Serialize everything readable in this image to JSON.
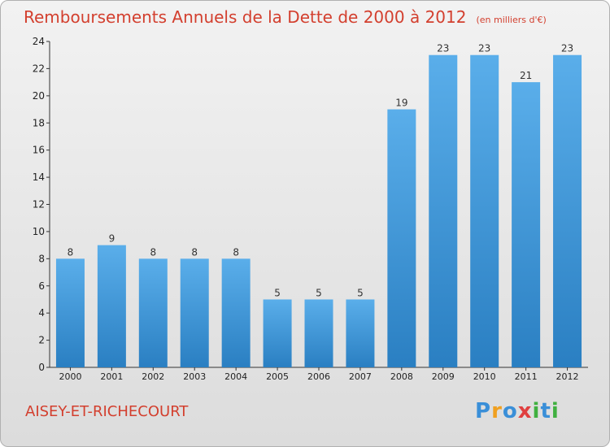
{
  "header": {
    "title": "Remboursements Annuels de la Dette de 2000 à 2012",
    "unit": "(en milliers d'€)"
  },
  "footer": {
    "place": "AISEY-ET-RICHECOURT",
    "logo": [
      "P",
      "r",
      "o",
      "x",
      "i",
      "t",
      "i"
    ]
  },
  "colors": {
    "title": "#d33f2e",
    "bar_top": "#5aaeea",
    "bar_bottom": "#2a7fc2",
    "logo": [
      "#3a8fd8",
      "#f0a020",
      "#3a8fd8",
      "#e04040",
      "#40b040",
      "#3a8fd8",
      "#40b040"
    ]
  },
  "chart_data": {
    "type": "bar",
    "categories": [
      "2000",
      "2001",
      "2002",
      "2003",
      "2004",
      "2005",
      "2006",
      "2007",
      "2008",
      "2009",
      "2010",
      "2011",
      "2012"
    ],
    "values": [
      8,
      9,
      8,
      8,
      8,
      5,
      5,
      5,
      19,
      23,
      23,
      21,
      23
    ],
    "title": "Remboursements Annuels de la Dette de 2000 à 2012",
    "xlabel": "",
    "ylabel": "",
    "ylim": [
      0,
      24
    ],
    "yticks": [
      0,
      2,
      4,
      6,
      8,
      10,
      12,
      14,
      16,
      18,
      20,
      22,
      24
    ],
    "grid": false,
    "legend": "none"
  }
}
